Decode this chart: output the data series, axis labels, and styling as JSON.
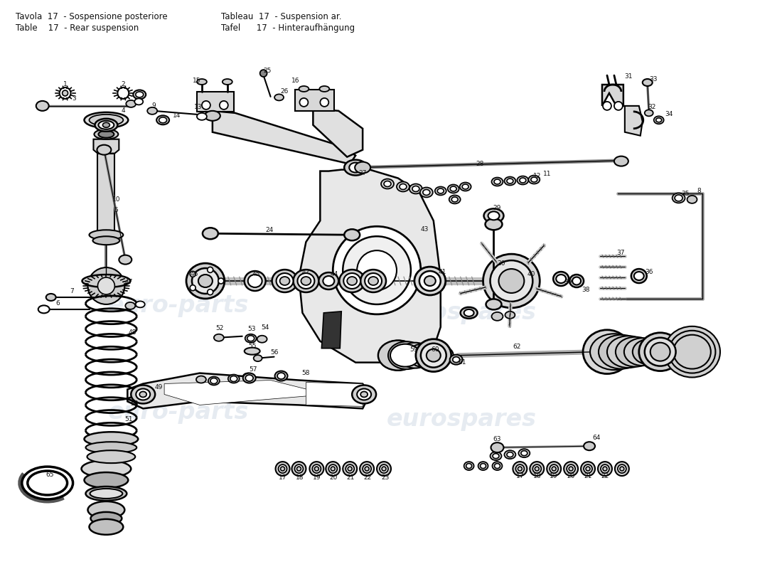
{
  "bg_color": "#ffffff",
  "title_line1": "Tavola  17  - Sospensione posteriore",
  "title_line2": "Table    17  - Rear suspension",
  "title_line3": "Tableau  17  - Suspension ar.",
  "title_line4": "Tafel      17  - Hinteraufhängung"
}
